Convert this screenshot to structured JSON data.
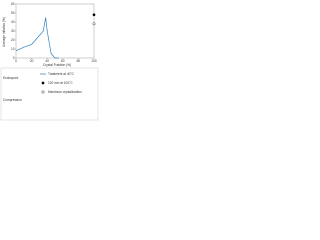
{
  "chart_data": {
    "type": "line",
    "y_label": "Average Inflation (%)",
    "x_label": "Crystal Fraction (%)",
    "xlim": [
      0,
      100
    ],
    "ylim": [
      0,
      60
    ],
    "xticks": [
      0,
      20,
      40,
      60,
      80,
      100
    ],
    "yticks": [
      0,
      10,
      20,
      30,
      40,
      50,
      60
    ],
    "legend_groups": [
      "Endospore",
      "Compression"
    ],
    "series": [
      {
        "name": "Treatment at 40°C",
        "color": "#2a7fc1",
        "marker": "none",
        "x": [
          0,
          10,
          20,
          25,
          30,
          35,
          38,
          40,
          45,
          50,
          55
        ],
        "values": [
          8,
          12,
          15,
          20,
          25,
          30,
          45,
          30,
          5,
          0,
          0
        ]
      },
      {
        "name": "120 min at 100°C",
        "color": "#000000",
        "marker": "filled",
        "x": [
          100
        ],
        "values": [
          48
        ]
      },
      {
        "name": "Maximum crystallization",
        "color": "#000000",
        "marker": "open",
        "x": [
          100
        ],
        "values": [
          38
        ]
      }
    ]
  }
}
